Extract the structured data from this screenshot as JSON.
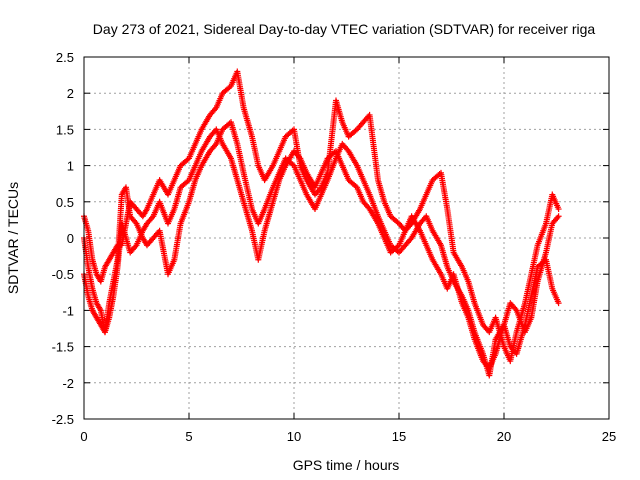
{
  "chart_data": {
    "type": "scatter",
    "title": "Day 273 of 2021, Sidereal Day-to-day VTEC variation (SDTVAR) for receiver riga",
    "xlabel": "GPS time / hours",
    "ylabel": "SDTVAR / TECUs",
    "xlim": [
      0,
      25
    ],
    "ylim": [
      -2.5,
      2.5
    ],
    "xticks": [
      "0",
      "5",
      "10",
      "15",
      "20",
      "25"
    ],
    "yticks": [
      "2.5",
      "2",
      "1.5",
      "1",
      "0.5",
      "0",
      "-0.5",
      "-1",
      "-1.5",
      "-2",
      "-2.5"
    ],
    "grid": true,
    "marker": "+",
    "color": "#ff0000",
    "series": [
      {
        "x": [
          0.0,
          0.2,
          0.4,
          0.6,
          0.8,
          1.0,
          1.2,
          1.4,
          1.6,
          1.8,
          2.0,
          2.2,
          2.5,
          2.8,
          3.0,
          3.3,
          3.6,
          4.0,
          4.3,
          4.6,
          5.0,
          5.3,
          5.6,
          6.0,
          6.3,
          6.6,
          7.0,
          7.3,
          7.6,
          8.0,
          8.3,
          8.6,
          9.0,
          9.3,
          9.6,
          10.0,
          10.3,
          10.6,
          11.0,
          11.3,
          11.6,
          12.0,
          12.3,
          12.6,
          13.0,
          13.3,
          13.6,
          14.0,
          14.3,
          14.6,
          15.0,
          15.3,
          15.6,
          16.0,
          16.3,
          16.6,
          17.0,
          17.3,
          17.6,
          18.0,
          18.3,
          18.6,
          19.0,
          19.3,
          19.6,
          20.0,
          20.3,
          20.6,
          21.0,
          21.3,
          21.6,
          22.0,
          22.3,
          22.6
        ],
        "y": [
          0.3,
          0.1,
          -0.3,
          -0.5,
          -0.6,
          -0.4,
          -0.3,
          -0.2,
          -0.1,
          -0.1,
          0.2,
          0.5,
          0.4,
          0.3,
          0.4,
          0.6,
          0.8,
          0.6,
          0.8,
          1.0,
          1.1,
          1.3,
          1.5,
          1.7,
          1.8,
          2.0,
          2.1,
          2.3,
          1.8,
          1.4,
          1.0,
          0.8,
          1.0,
          1.2,
          1.4,
          1.5,
          1.0,
          0.8,
          0.6,
          0.7,
          0.9,
          1.9,
          1.6,
          1.4,
          1.5,
          1.6,
          1.7,
          0.8,
          0.5,
          0.3,
          0.2,
          0.1,
          0.2,
          0.4,
          0.6,
          0.8,
          0.9,
          0.4,
          -0.2,
          -0.4,
          -0.6,
          -0.9,
          -1.2,
          -1.3,
          -1.1,
          -1.5,
          -1.7,
          -1.3,
          -0.9,
          -0.5,
          -0.1,
          0.2,
          0.6,
          0.4
        ]
      },
      {
        "x": [
          0.0,
          0.2,
          0.4,
          0.6,
          0.8,
          1.0,
          1.2,
          1.4,
          1.6,
          1.8,
          2.0,
          2.2,
          2.5,
          2.8,
          3.0,
          3.3,
          3.6,
          4.0,
          4.3,
          4.6,
          5.0,
          5.3,
          5.6,
          6.0,
          6.3,
          6.6,
          7.0,
          7.3,
          7.6,
          8.0,
          8.3,
          8.6,
          9.0,
          9.3,
          9.6,
          10.0,
          10.3,
          10.6,
          11.0,
          11.3,
          11.6,
          12.0,
          12.3,
          12.6,
          13.0,
          13.3,
          13.6,
          14.0,
          14.3,
          14.6,
          15.0,
          15.3,
          15.6,
          16.0,
          16.3,
          16.6,
          17.0,
          17.3,
          17.6,
          18.0,
          18.3,
          18.6,
          19.0,
          19.3,
          19.6,
          20.0,
          20.3,
          20.6,
          21.0,
          21.3,
          21.6,
          22.0,
          22.3,
          22.6
        ],
        "y": [
          -0.5,
          -0.8,
          -1.0,
          -1.1,
          -1.2,
          -1.3,
          -0.9,
          -0.6,
          -0.3,
          0.6,
          0.7,
          0.3,
          0.2,
          0.0,
          -0.1,
          0.0,
          0.1,
          -0.5,
          -0.3,
          0.2,
          0.5,
          0.8,
          1.0,
          1.2,
          1.3,
          1.5,
          1.6,
          1.3,
          0.9,
          0.4,
          0.2,
          0.4,
          0.7,
          0.9,
          1.1,
          1.0,
          0.8,
          0.6,
          0.4,
          0.6,
          0.8,
          1.1,
          1.3,
          1.2,
          1.0,
          0.8,
          0.6,
          0.3,
          0.1,
          -0.1,
          -0.2,
          -0.1,
          0.0,
          0.2,
          0.3,
          0.1,
          -0.1,
          -0.4,
          -0.6,
          -0.8,
          -1.0,
          -1.3,
          -1.6,
          -1.9,
          -1.4,
          -1.2,
          -1.5,
          -1.6,
          -1.2,
          -0.8,
          -0.4,
          -0.3,
          -0.7,
          -0.9
        ]
      },
      {
        "x": [
          0.0,
          0.2,
          0.4,
          0.6,
          0.8,
          1.0,
          1.2,
          1.4,
          1.6,
          1.8,
          2.0,
          2.2,
          2.5,
          2.8,
          3.0,
          3.3,
          3.6,
          4.0,
          4.3,
          4.6,
          5.0,
          5.3,
          5.6,
          6.0,
          6.3,
          6.6,
          7.0,
          7.3,
          7.6,
          8.0,
          8.3,
          8.6,
          9.0,
          9.3,
          9.6,
          10.0,
          10.3,
          10.6,
          11.0,
          11.3,
          11.6,
          12.0,
          12.3,
          12.6,
          13.0,
          13.3,
          13.6,
          14.0,
          14.3,
          14.6,
          15.0,
          15.3,
          15.6,
          16.0,
          16.3,
          16.6,
          17.0,
          17.3,
          17.6,
          18.0,
          18.3,
          18.6,
          19.0,
          19.3,
          19.6,
          20.0,
          20.3,
          20.6,
          21.0,
          21.3,
          21.6,
          22.0,
          22.3,
          22.6
        ],
        "y": [
          0.0,
          -0.4,
          -0.7,
          -0.9,
          -1.0,
          -1.3,
          -1.1,
          -0.8,
          -0.4,
          0.2,
          0.0,
          -0.2,
          -0.1,
          0.1,
          0.2,
          0.3,
          0.5,
          0.2,
          0.4,
          0.7,
          0.8,
          1.0,
          1.2,
          1.4,
          1.5,
          1.3,
          1.1,
          0.8,
          0.5,
          0.1,
          -0.3,
          0.1,
          0.5,
          0.8,
          1.0,
          1.2,
          1.1,
          0.9,
          0.7,
          0.9,
          1.1,
          1.2,
          1.0,
          0.8,
          0.7,
          0.5,
          0.4,
          0.2,
          0.0,
          -0.2,
          -0.1,
          0.1,
          0.3,
          0.1,
          -0.1,
          -0.3,
          -0.5,
          -0.7,
          -0.5,
          -0.9,
          -1.1,
          -1.4,
          -1.7,
          -1.8,
          -1.6,
          -1.2,
          -0.9,
          -1.0,
          -1.3,
          -1.1,
          -0.6,
          -0.2,
          0.2,
          0.3
        ]
      }
    ]
  }
}
